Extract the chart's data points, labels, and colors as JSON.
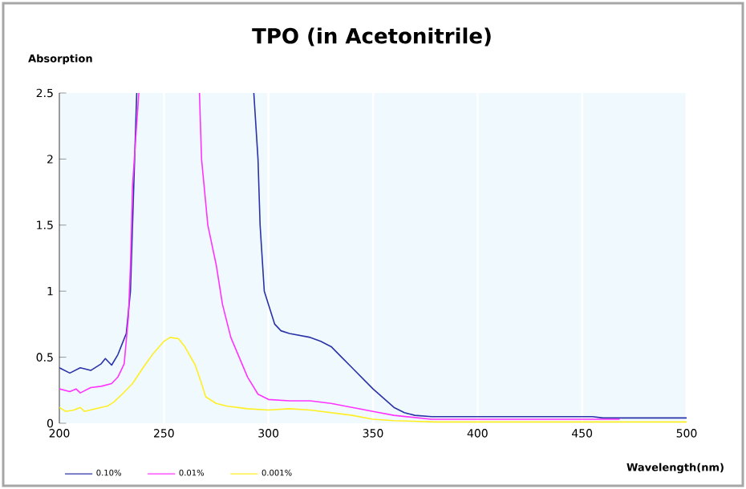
{
  "chart_data": {
    "type": "line",
    "title": "TPO (in Acetonitrile)",
    "xlabel": "Wavelength(nm)",
    "ylabel": "Absorption",
    "xlim": [
      200,
      500
    ],
    "xticks": [
      200,
      250,
      300,
      350,
      400,
      450,
      500
    ],
    "ylim": [
      0,
      2.5
    ],
    "yticks": [
      0,
      0.5,
      1,
      1.5,
      2,
      2.5
    ],
    "grid": "x",
    "legend": "bottom",
    "marker": "none",
    "line_style": "solid",
    "series": [
      {
        "name": "0.10%",
        "color": "#2a32a8",
        "x": [
          200,
          205,
          210,
          215,
          220,
          222,
          225,
          228,
          230,
          232,
          234,
          235,
          236,
          237,
          265,
          293,
          295,
          296,
          298,
          300,
          303,
          306,
          310,
          320,
          325,
          330,
          335,
          340,
          345,
          350,
          355,
          360,
          365,
          370,
          378,
          400,
          455,
          460,
          500
        ],
        "values": [
          0.42,
          0.38,
          0.42,
          0.4,
          0.45,
          0.49,
          0.44,
          0.52,
          0.6,
          0.68,
          1.0,
          1.5,
          2.0,
          2.5,
          null,
          2.5,
          2.0,
          1.5,
          1.0,
          0.9,
          0.75,
          0.7,
          0.68,
          0.65,
          0.62,
          0.58,
          0.5,
          0.42,
          0.34,
          0.26,
          0.19,
          0.12,
          0.08,
          0.06,
          0.05,
          0.05,
          0.05,
          0.04,
          0.04
        ]
      },
      {
        "name": "0.01%",
        "color": "#ff33ff",
        "x": [
          200,
          205,
          208,
          210,
          215,
          220,
          225,
          228,
          231,
          233,
          234,
          235,
          238,
          250,
          267,
          268,
          271,
          275,
          278,
          282,
          286,
          290,
          295,
          300,
          310,
          320,
          330,
          340,
          350,
          360,
          378,
          400,
          468
        ],
        "values": [
          0.26,
          0.24,
          0.26,
          0.23,
          0.27,
          0.28,
          0.3,
          0.35,
          0.45,
          0.8,
          1.2,
          1.8,
          2.5,
          null,
          2.5,
          2.0,
          1.5,
          1.2,
          0.9,
          0.65,
          0.5,
          0.35,
          0.22,
          0.18,
          0.17,
          0.17,
          0.15,
          0.12,
          0.09,
          0.06,
          0.03,
          0.03,
          0.03
        ]
      },
      {
        "name": "0.001%",
        "color": "#ffee22",
        "x": [
          200,
          203,
          207,
          210,
          212,
          220,
          223,
          226,
          230,
          235,
          240,
          245,
          250,
          253,
          257,
          260,
          265,
          268,
          270,
          275,
          280,
          290,
          300,
          310,
          320,
          330,
          340,
          350,
          360,
          380,
          500
        ],
        "values": [
          0.12,
          0.09,
          0.1,
          0.12,
          0.09,
          0.12,
          0.13,
          0.16,
          0.22,
          0.3,
          0.42,
          0.53,
          0.62,
          0.65,
          0.64,
          0.58,
          0.44,
          0.3,
          0.2,
          0.15,
          0.13,
          0.11,
          0.1,
          0.11,
          0.1,
          0.08,
          0.06,
          0.03,
          0.02,
          0.01,
          0.01
        ]
      }
    ]
  }
}
